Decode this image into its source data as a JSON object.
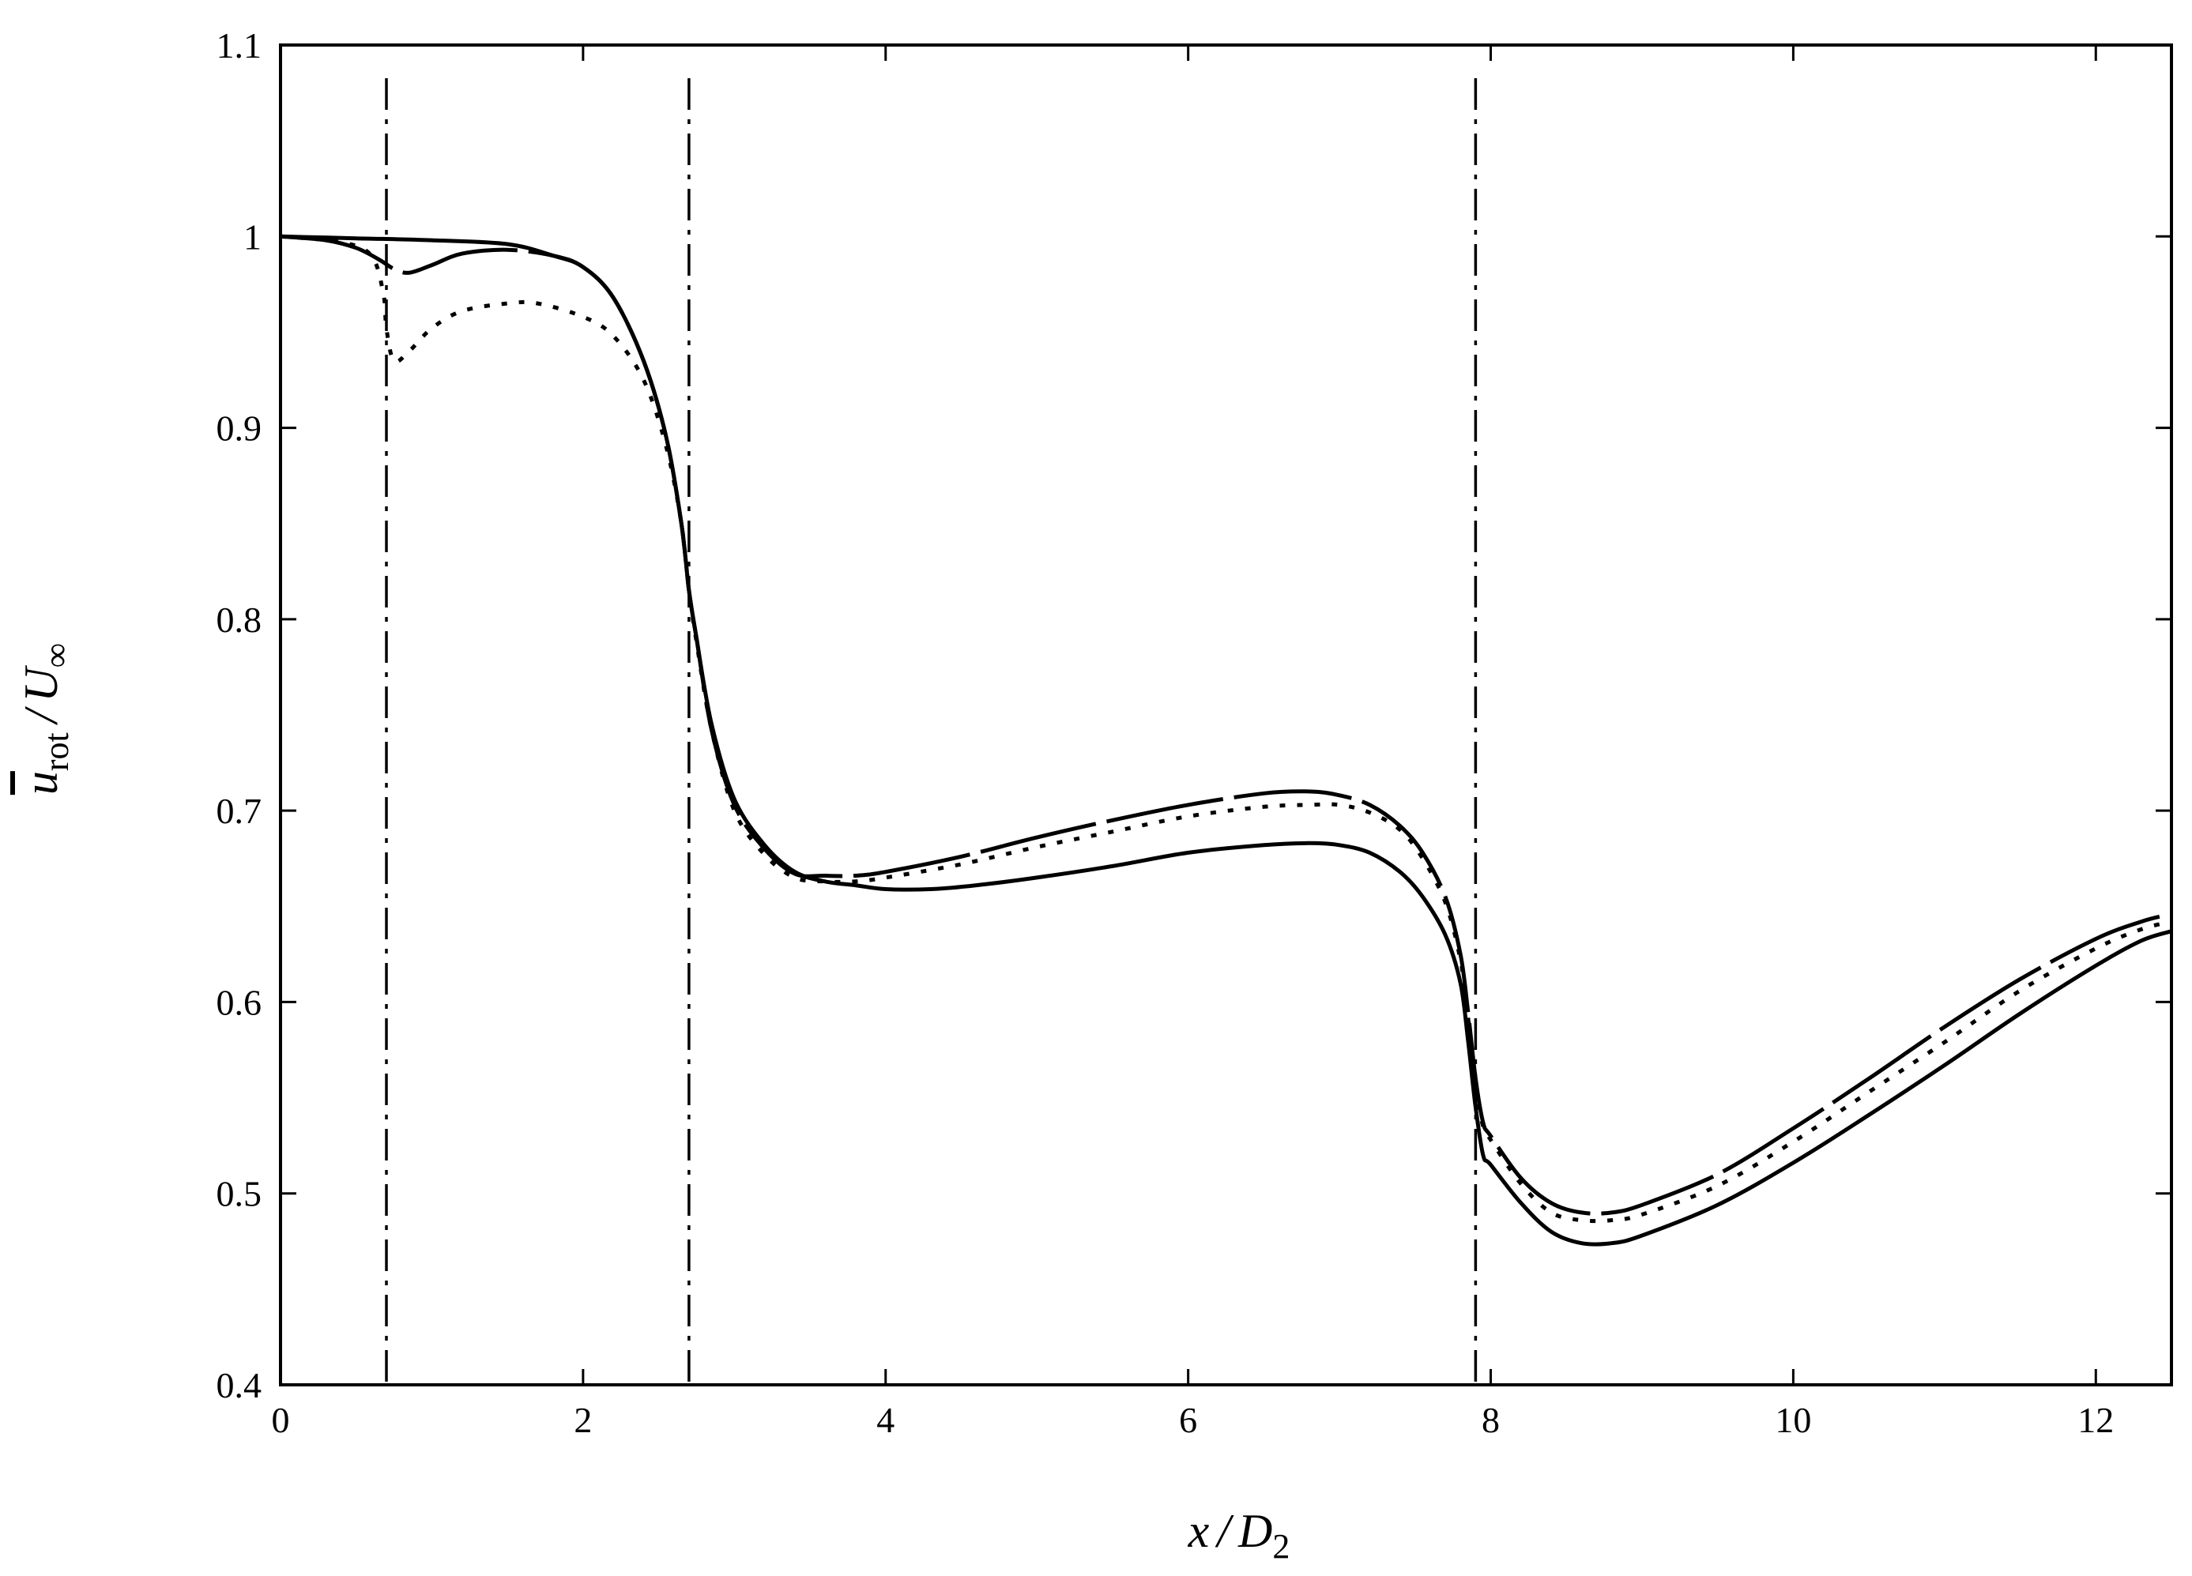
{
  "chart_data": {
    "type": "line",
    "xlabel": {
      "var": "x",
      "sep": "/",
      "denom": "D",
      "sub": "2"
    },
    "ylabel": {
      "var": "u",
      "sub": "rot",
      "sep": "/",
      "denom": "U",
      "denomSub": "∞"
    },
    "xlim": [
      0,
      12.5
    ],
    "ylim": [
      0.4,
      1.1
    ],
    "xticks": [
      0,
      2,
      4,
      6,
      8,
      10,
      12
    ],
    "xtick_labels": [
      "0",
      "2",
      "4",
      "6",
      "8",
      "10",
      "12"
    ],
    "yticks": [
      0.4,
      0.5,
      0.6,
      0.7,
      0.8,
      0.9,
      1.0,
      1.1
    ],
    "ytick_labels": [
      "0.4",
      "0.5",
      "0.6",
      "0.7",
      "0.8",
      "0.9",
      "1",
      "1.1"
    ],
    "grid": false,
    "vertical_lines": [
      0.7,
      2.7,
      7.9
    ],
    "vertical_line_style": "dash-dot",
    "series": [
      {
        "style": "solid",
        "x": [
          0,
          0.5,
          1.0,
          1.5,
          1.8,
          2.0,
          2.2,
          2.4,
          2.55,
          2.65,
          2.7,
          2.75,
          2.85,
          3.0,
          3.2,
          3.4,
          3.6,
          3.8,
          4.0,
          4.3,
          4.6,
          5.0,
          5.5,
          6.0,
          6.5,
          6.8,
          7.0,
          7.2,
          7.4,
          7.55,
          7.7,
          7.8,
          7.85,
          7.9,
          7.95,
          8.0,
          8.2,
          8.4,
          8.6,
          8.8,
          9.0,
          9.5,
          10.0,
          10.5,
          11.0,
          11.5,
          12.0,
          12.3,
          12.5
        ],
        "y": [
          1.0,
          0.999,
          0.998,
          0.996,
          0.99,
          0.984,
          0.968,
          0.935,
          0.895,
          0.85,
          0.815,
          0.79,
          0.745,
          0.706,
          0.682,
          0.668,
          0.663,
          0.661,
          0.659,
          0.659,
          0.661,
          0.665,
          0.671,
          0.678,
          0.682,
          0.683,
          0.682,
          0.678,
          0.668,
          0.655,
          0.635,
          0.61,
          0.58,
          0.545,
          0.52,
          0.515,
          0.495,
          0.48,
          0.474,
          0.474,
          0.478,
          0.494,
          0.516,
          0.541,
          0.567,
          0.594,
          0.619,
          0.632,
          0.637
        ]
      },
      {
        "style": "dash",
        "x": [
          0,
          0.3,
          0.5,
          0.65,
          0.75,
          0.85,
          1.0,
          1.2,
          1.5,
          1.8,
          2.0,
          2.2,
          2.4,
          2.55,
          2.65,
          2.7,
          2.75,
          2.85,
          3.0,
          3.2,
          3.4,
          3.6,
          3.8,
          4.0,
          4.5,
          5.0,
          5.5,
          6.0,
          6.5,
          6.8,
          7.0,
          7.2,
          7.4,
          7.55,
          7.7,
          7.8,
          7.85,
          7.9,
          7.95,
          8.0,
          8.2,
          8.4,
          8.6,
          8.8,
          9.0,
          9.5,
          10.0,
          10.5,
          11.0,
          11.5,
          12.0,
          12.3,
          12.5
        ],
        "y": [
          1.0,
          0.998,
          0.994,
          0.988,
          0.983,
          0.981,
          0.985,
          0.991,
          0.993,
          0.99,
          0.984,
          0.968,
          0.935,
          0.895,
          0.85,
          0.815,
          0.79,
          0.742,
          0.703,
          0.68,
          0.667,
          0.666,
          0.666,
          0.668,
          0.676,
          0.686,
          0.695,
          0.703,
          0.709,
          0.71,
          0.708,
          0.703,
          0.692,
          0.678,
          0.655,
          0.625,
          0.595,
          0.56,
          0.537,
          0.53,
          0.508,
          0.495,
          0.49,
          0.49,
          0.494,
          0.51,
          0.534,
          0.56,
          0.587,
          0.612,
          0.633,
          0.642,
          0.646
        ]
      },
      {
        "style": "dot",
        "x": [
          0,
          0.4,
          0.6,
          0.68,
          0.7,
          0.75,
          0.85,
          1.0,
          1.2,
          1.5,
          1.7,
          2.0,
          2.2,
          2.4,
          2.55,
          2.65,
          2.7,
          2.75,
          2.85,
          3.0,
          3.2,
          3.4,
          3.6,
          3.8,
          4.0,
          4.5,
          5.0,
          5.5,
          6.0,
          6.5,
          6.8,
          7.0,
          7.2,
          7.4,
          7.55,
          7.7,
          7.8,
          7.85,
          7.9,
          7.95,
          8.0,
          8.2,
          8.4,
          8.6,
          8.8,
          9.0,
          9.5,
          10.0,
          10.5,
          11.0,
          11.5,
          12.0,
          12.3,
          12.5
        ],
        "y": [
          1.0,
          0.997,
          0.99,
          0.97,
          0.952,
          0.935,
          0.94,
          0.952,
          0.961,
          0.965,
          0.965,
          0.958,
          0.948,
          0.925,
          0.89,
          0.85,
          0.815,
          0.788,
          0.742,
          0.7,
          0.677,
          0.665,
          0.663,
          0.663,
          0.665,
          0.672,
          0.681,
          0.689,
          0.697,
          0.702,
          0.703,
          0.703,
          0.699,
          0.69,
          0.675,
          0.652,
          0.622,
          0.592,
          0.555,
          0.535,
          0.528,
          0.505,
          0.49,
          0.486,
          0.486,
          0.489,
          0.504,
          0.527,
          0.553,
          0.579,
          0.606,
          0.628,
          0.638,
          0.642
        ]
      }
    ]
  }
}
